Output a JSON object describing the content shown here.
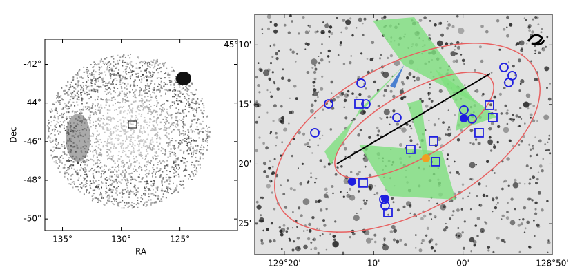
{
  "chart_data": [
    {
      "type": "image",
      "xlabel": "RA",
      "ylabel": "Dec",
      "xlim": [
        136.5,
        120.1
      ],
      "ylim": [
        -50.6,
        -40.7
      ],
      "xticks": [
        {
          "value": 135,
          "label": "135°"
        },
        {
          "value": 130,
          "label": "130°"
        },
        {
          "value": 125,
          "label": "125°"
        }
      ],
      "yticks": [
        {
          "value": -42,
          "label": "-42°"
        },
        {
          "value": -44,
          "label": "-44°"
        },
        {
          "value": -46,
          "label": "-46°"
        },
        {
          "value": -48,
          "label": "-48°"
        },
        {
          "value": -50,
          "label": "-50°"
        }
      ]
    },
    {
      "type": "scatter",
      "xlim": [
        129.3885,
        128.8333
      ],
      "ylim": [
        -45.4599,
        -45.124
      ],
      "xticks": [
        {
          "value": 129.3333,
          "label": "129°20'"
        },
        {
          "value": 129.1667,
          "label": "10'"
        },
        {
          "value": 129.0,
          "label": "00'"
        },
        {
          "value": 128.8333,
          "label": "128°50'"
        }
      ],
      "yticks": [
        {
          "value": -45.1667,
          "label": "-45°10'"
        },
        {
          "value": -45.25,
          "label": "15'"
        },
        {
          "value": -45.3333,
          "label": "20'"
        },
        {
          "value": -45.4167,
          "label": "25'"
        }
      ],
      "series": [
        {
          "marker": "circle",
          "color": "#1f1fe0",
          "x": [
            129.1901,
            129.2507,
            129.2764,
            129.1811,
            129.1232,
            128.9235,
            128.9081,
            128.9145,
            128.9828,
            128.9982,
            129.1451,
            129.1476
          ],
          "values": [
            -45.2202,
            -45.2491,
            -45.2895,
            -45.2491,
            -45.2683,
            -45.1981,
            -45.2096,
            -45.2192,
            -45.2702,
            -45.2577,
            -45.3914,
            -45.3828
          ]
        },
        {
          "marker": "square",
          "color": "#1f1fe0",
          "x": [
            129.194,
            129.0549,
            129.0974,
            129.051,
            129.1863,
            128.9506,
            128.9441,
            128.9699,
            129.1399
          ],
          "values": [
            -45.2491,
            -45.301,
            -45.3126,
            -45.3299,
            -45.3597,
            -45.251,
            -45.2683,
            -45.2895,
            -45.4011
          ]
        },
        {
          "marker": "dot",
          "color": "#1f1fe0",
          "x": [
            129.2069,
            129.1451,
            128.9982
          ],
          "values": [
            -45.3578,
            -45.3818,
            -45.2693
          ]
        },
        {
          "marker": "dot",
          "color": "#f0a020",
          "x": [
            129.0691
          ],
          "values": [
            -45.3251
          ]
        }
      ]
    }
  ]
}
